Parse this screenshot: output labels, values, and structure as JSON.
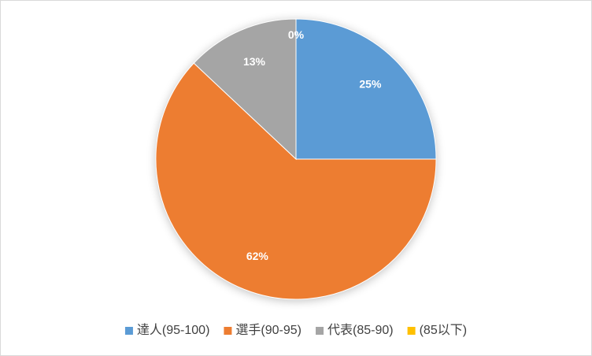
{
  "chart_data": {
    "type": "pie",
    "categories": [
      "達人(95-100)",
      "選手(90-95)",
      "代表(85-90)",
      "(85以下)"
    ],
    "values": [
      25,
      62,
      13,
      0
    ],
    "value_labels": [
      "25%",
      "62%",
      "13%",
      "0%"
    ],
    "colors": [
      "#5b9bd5",
      "#ed7d31",
      "#a5a5a5",
      "#ffc000"
    ],
    "legend": "bottom"
  }
}
